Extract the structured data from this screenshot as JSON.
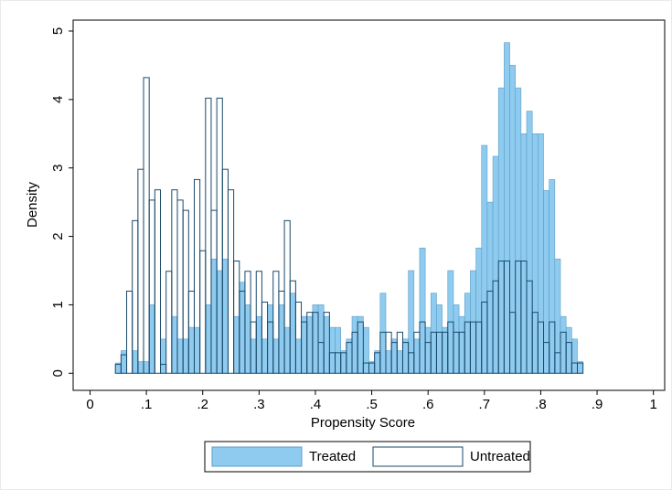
{
  "chart_data": {
    "type": "histogram",
    "xlabel": "Propensity Score",
    "ylabel": "Density",
    "bins": [
      0.045,
      0.055,
      0.065,
      0.075,
      0.085,
      0.095,
      0.105,
      0.115,
      0.125,
      0.135,
      0.145,
      0.155,
      0.165,
      0.175,
      0.185,
      0.195,
      0.205,
      0.215,
      0.225,
      0.235,
      0.245,
      0.255,
      0.265,
      0.275,
      0.285,
      0.295,
      0.305,
      0.315,
      0.325,
      0.335,
      0.345,
      0.355,
      0.365,
      0.375,
      0.385,
      0.395,
      0.405,
      0.415,
      0.425,
      0.435,
      0.445,
      0.455,
      0.465,
      0.475,
      0.485,
      0.495,
      0.505,
      0.515,
      0.525,
      0.535,
      0.545,
      0.555,
      0.565,
      0.575,
      0.585,
      0.595,
      0.605,
      0.615,
      0.625,
      0.635,
      0.645,
      0.655,
      0.665,
      0.675,
      0.685,
      0.695,
      0.705,
      0.715,
      0.725,
      0.735,
      0.745,
      0.755,
      0.765,
      0.775,
      0.785,
      0.795,
      0.805,
      0.815,
      0.825,
      0.835,
      0.845,
      0.855,
      0.865,
      0.875
    ],
    "series": [
      {
        "name": "Treated",
        "color": "#8ecbef",
        "edgecolor": "#5d9fc9",
        "values": [
          0.15,
          0.33,
          0,
          0.33,
          0.17,
          0.17,
          1.0,
          0,
          0.5,
          0,
          0.83,
          0.5,
          0.5,
          0.67,
          0.67,
          0,
          1.0,
          1.67,
          1.5,
          1.67,
          0,
          0.83,
          1.33,
          1.0,
          0.5,
          0.83,
          0.5,
          1.0,
          0.5,
          1.0,
          0.67,
          1.17,
          0.5,
          0.83,
          0.83,
          1.0,
          1.0,
          0.83,
          0.67,
          0.67,
          0.33,
          0.5,
          0.83,
          0.83,
          0.67,
          0.17,
          0.33,
          1.17,
          0.33,
          0.5,
          0.33,
          0.5,
          1.5,
          0.5,
          1.83,
          0.67,
          1.17,
          1.0,
          0.67,
          1.5,
          1.0,
          0.83,
          1.17,
          1.5,
          1.83,
          3.33,
          2.5,
          3.17,
          4.17,
          4.83,
          4.5,
          4.17,
          3.5,
          3.83,
          3.5,
          3.5,
          2.67,
          2.83,
          1.67,
          0.83,
          0.67,
          0.5,
          0.17
        ]
      },
      {
        "name": "Untreated",
        "color": "#1b4a6b",
        "values": [
          0.13,
          0.27,
          1.2,
          2.23,
          2.98,
          4.32,
          2.53,
          2.68,
          0.13,
          1.49,
          2.68,
          2.53,
          2.38,
          1.2,
          2.83,
          1.79,
          4.02,
          2.38,
          4.02,
          2.98,
          2.68,
          1.64,
          1.2,
          1.49,
          0.75,
          1.49,
          1.04,
          0.75,
          1.49,
          1.2,
          2.23,
          1.35,
          1.04,
          0.75,
          0.89,
          0.89,
          0.45,
          0.89,
          0.3,
          0.3,
          0.3,
          0.45,
          0.6,
          0.75,
          0.15,
          0.15,
          0.3,
          0.6,
          0.6,
          0.45,
          0.6,
          0.45,
          0.3,
          0.6,
          0.75,
          0.45,
          0.6,
          0.6,
          0.6,
          0.75,
          0.6,
          0.6,
          0.75,
          0.75,
          0.75,
          1.04,
          1.2,
          1.35,
          1.64,
          1.64,
          0.89,
          1.64,
          1.64,
          1.35,
          0.89,
          0.75,
          0.45,
          0.75,
          0.3,
          0.6,
          0.45,
          0.15,
          0.15
        ]
      }
    ],
    "xlim": [
      -0.03,
      1.02
    ],
    "ylim": [
      -0.25,
      5.16
    ],
    "xticks": [
      0,
      {
        "value": 0.1,
        "label": ".1"
      },
      {
        "value": 0.2,
        "label": ".2"
      },
      {
        "value": 0.3,
        "label": ".3"
      },
      {
        "value": 0.4,
        "label": ".4"
      },
      {
        "value": 0.5,
        "label": ".5"
      },
      {
        "value": 0.6,
        "label": ".6"
      },
      {
        "value": 0.7,
        "label": ".7"
      },
      {
        "value": 0.8,
        "label": ".8"
      },
      {
        "value": 0.9,
        "label": ".9"
      },
      1
    ],
    "yticks": [
      0,
      1,
      2,
      3,
      4,
      5
    ],
    "grid": false,
    "legend": "bottom"
  }
}
